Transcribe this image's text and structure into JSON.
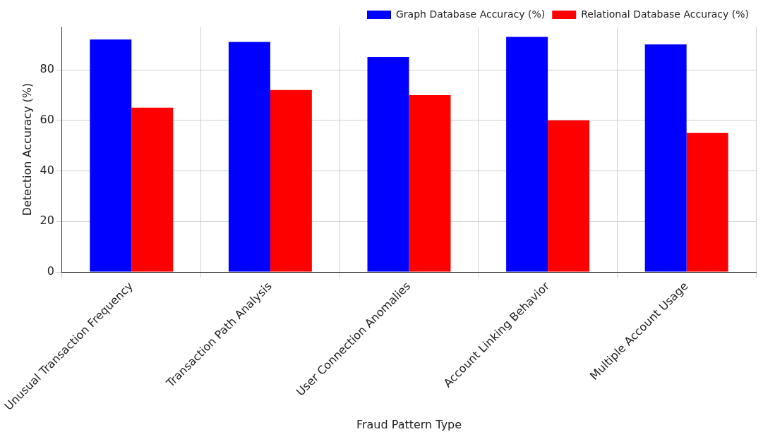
{
  "chart_data": {
    "type": "bar",
    "xlabel": "Fraud Pattern Type",
    "ylabel": "Detection Accuracy (%)",
    "categories": [
      "Unusual Transaction Frequency",
      "Transaction Path Analysis",
      "User Connection Anomalies",
      "Account Linking Behavior",
      "Multiple Account Usage"
    ],
    "series": [
      {
        "name": "Graph Database Accuracy (%)",
        "color": "#0000ff",
        "values": [
          92,
          91,
          85,
          93,
          90
        ]
      },
      {
        "name": "Relational Database Accuracy (%)",
        "color": "#ff0000",
        "values": [
          65,
          72,
          70,
          60,
          55
        ]
      }
    ],
    "ylim": [
      0,
      97
    ],
    "yticks": [
      0,
      20,
      40,
      60,
      80
    ],
    "grid": true,
    "legend": "top right"
  }
}
